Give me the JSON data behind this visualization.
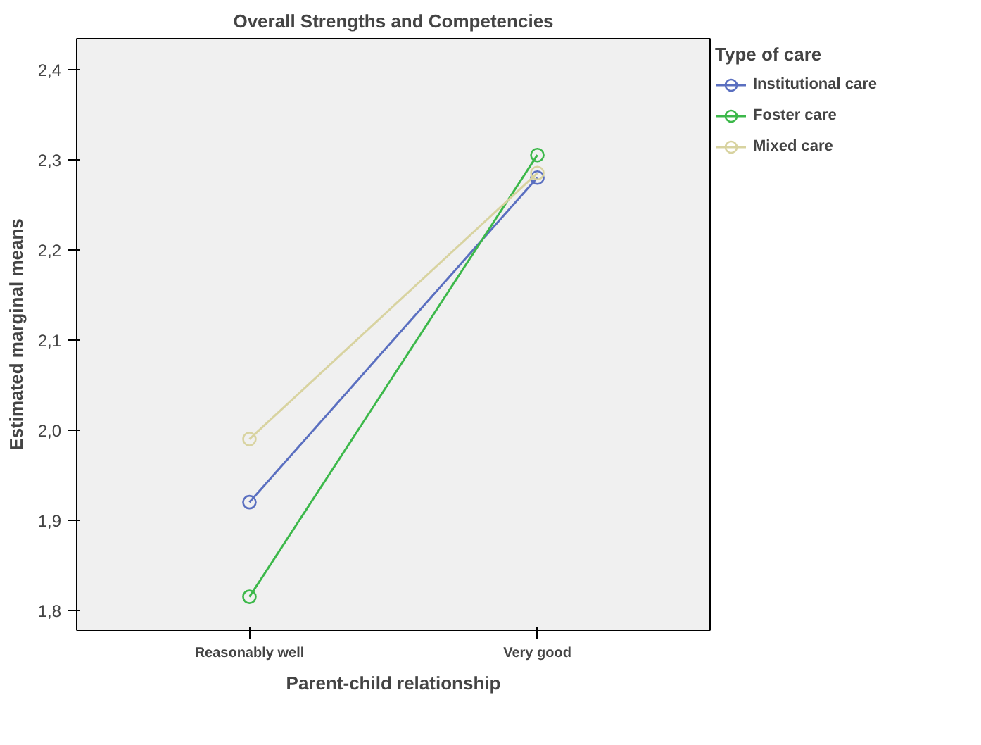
{
  "chart_data": {
    "type": "line",
    "title": "Overall Strengths and Competencies",
    "xlabel": "Parent-child relationship",
    "ylabel": "Estimated marginal means",
    "legend_title": "Type of care",
    "categories": [
      "Reasonably well",
      "Very good"
    ],
    "series": [
      {
        "name": "Institutional care",
        "color": "#5a6fc0",
        "values": [
          1.92,
          2.28
        ]
      },
      {
        "name": "Foster care",
        "color": "#3cb84a",
        "values": [
          1.815,
          2.305
        ]
      },
      {
        "name": "Mixed care",
        "color": "#d8d3a0",
        "values": [
          1.99,
          2.285
        ]
      }
    ],
    "ylim": [
      1.778,
      2.434
    ],
    "yticks": [
      {
        "value": 1.8,
        "label": "1,8"
      },
      {
        "value": 1.9,
        "label": "1,9"
      },
      {
        "value": 2.0,
        "label": "2,0"
      },
      {
        "value": 2.1,
        "label": "2,1"
      },
      {
        "value": 2.2,
        "label": "2,2"
      },
      {
        "value": 2.3,
        "label": "2,3"
      },
      {
        "value": 2.4,
        "label": "2,4"
      }
    ],
    "marker": "circle",
    "grid": false,
    "legend": "right"
  }
}
